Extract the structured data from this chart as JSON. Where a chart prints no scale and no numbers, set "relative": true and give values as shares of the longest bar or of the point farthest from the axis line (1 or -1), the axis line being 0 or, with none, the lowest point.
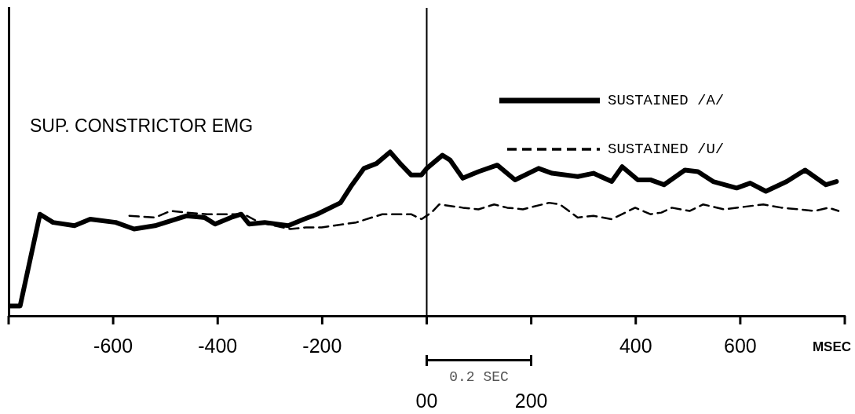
{
  "chart_data": {
    "type": "line",
    "relative": true,
    "xlabel": "MSEC",
    "annotations": [
      "SUP. CONSTRICTOR EMG",
      "0.2 SEC",
      "00",
      "200"
    ],
    "xlim": [
      -800,
      800
    ],
    "xticks": [
      {
        "value": -800,
        "label": null
      },
      -600,
      -400,
      -200,
      {
        "value": 0,
        "label": null
      },
      {
        "value": 200,
        "label": null
      },
      400,
      600,
      {
        "value": 800,
        "label": null
      }
    ],
    "tick_labels": "x",
    "legend": "top right",
    "marker": "none",
    "grid": false,
    "ref_lines": [
      {
        "axis": "x",
        "value": 0,
        "color": "#000000"
      }
    ],
    "series": [
      {
        "name": "SUSTAINED /A/",
        "color": "#000000",
        "line_style": "solid",
        "x": [
          -797,
          -778,
          -740,
          -715,
          -674,
          -644,
          -595,
          -560,
          -520,
          -460,
          -425,
          -405,
          -375,
          -355,
          -340,
          -310,
          -265,
          -235,
          -210,
          -165,
          -145,
          -120,
          -96,
          -70,
          -51,
          -30,
          -10,
          0,
          30,
          45,
          69,
          99,
          135,
          169,
          214,
          240,
          289,
          319,
          354,
          374,
          404,
          428,
          454,
          494,
          519,
          548,
          593,
          619,
          649,
          689,
          724,
          764,
          784
        ],
        "values": [
          0.06,
          0.06,
          0.62,
          0.57,
          0.55,
          0.59,
          0.57,
          0.53,
          0.55,
          0.61,
          0.6,
          0.56,
          0.6,
          0.62,
          0.56,
          0.57,
          0.55,
          0.59,
          0.62,
          0.69,
          0.79,
          0.9,
          0.93,
          1,
          0.93,
          0.86,
          0.86,
          0.9,
          0.98,
          0.95,
          0.84,
          0.88,
          0.92,
          0.83,
          0.9,
          0.87,
          0.85,
          0.87,
          0.82,
          0.91,
          0.83,
          0.83,
          0.8,
          0.89,
          0.88,
          0.82,
          0.78,
          0.81,
          0.76,
          0.82,
          0.89,
          0.8,
          0.82
        ]
      },
      {
        "name": "SUSTAINED /U/",
        "color": "#000000",
        "line_style": "dashed",
        "x": [
          -569,
          -520,
          -490,
          -460,
          -420,
          -350,
          -320,
          -261,
          -231,
          -201,
          -135,
          -85,
          -30,
          -10,
          9,
          24,
          69,
          99,
          129,
          154,
          184,
          234,
          255,
          289,
          319,
          354,
          399,
          428,
          449,
          469,
          503,
          529,
          569,
          644,
          679,
          743,
          769,
          788
        ],
        "values": [
          0.61,
          0.6,
          0.64,
          0.63,
          0.62,
          0.62,
          0.57,
          0.53,
          0.54,
          0.54,
          0.57,
          0.62,
          0.62,
          0.59,
          0.63,
          0.68,
          0.66,
          0.65,
          0.68,
          0.66,
          0.65,
          0.69,
          0.68,
          0.6,
          0.61,
          0.59,
          0.66,
          0.62,
          0.63,
          0.66,
          0.64,
          0.68,
          0.65,
          0.68,
          0.66,
          0.64,
          0.66,
          0.64
        ]
      }
    ]
  }
}
